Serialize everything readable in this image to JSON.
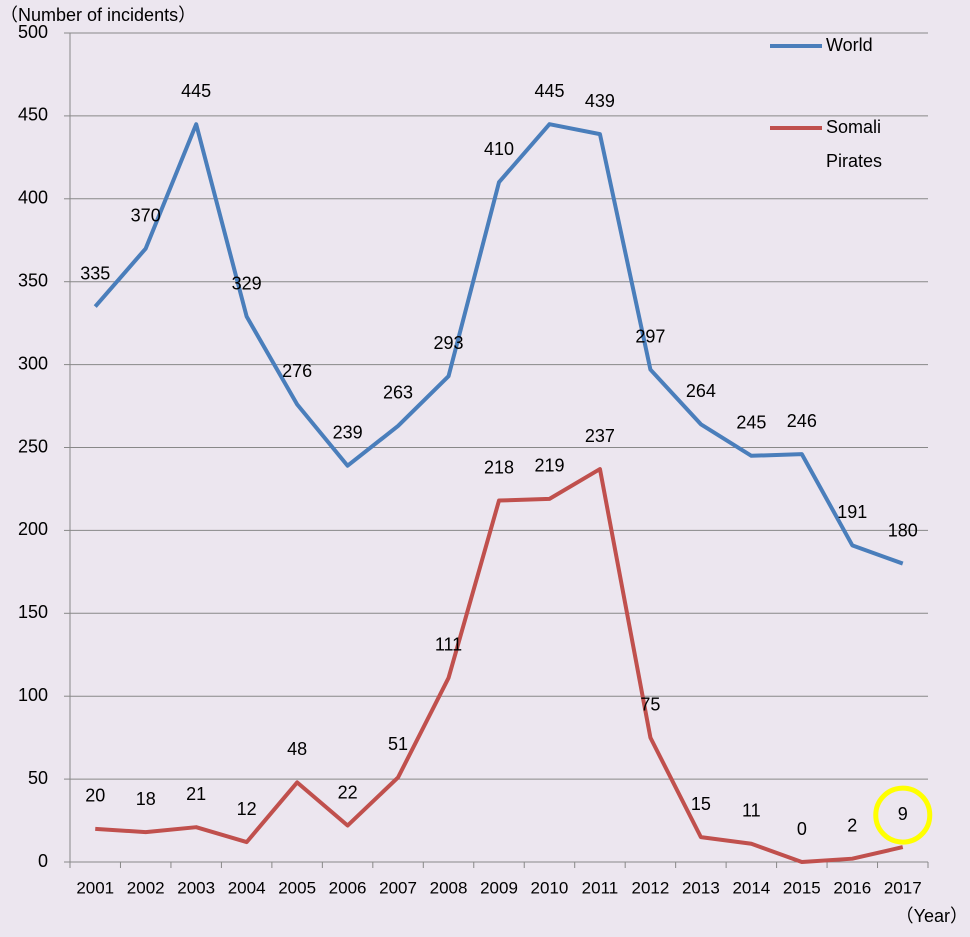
{
  "chart_data": {
    "type": "line",
    "y_axis_label": "（Number of incidents）",
    "x_axis_label": "（Year）",
    "categories": [
      "2001",
      "2002",
      "2003",
      "2004",
      "2005",
      "2006",
      "2007",
      "2008",
      "2009",
      "2010",
      "2011",
      "2012",
      "2013",
      "2014",
      "2015",
      "2016",
      "2017"
    ],
    "series": [
      {
        "name": "World",
        "color": "#4a7ebb",
        "values": [
          335,
          370,
          445,
          329,
          276,
          239,
          263,
          293,
          410,
          445,
          439,
          297,
          264,
          245,
          246,
          191,
          180
        ]
      },
      {
        "name": "Somali Pirates",
        "color": "#c0504d",
        "values": [
          20,
          18,
          21,
          12,
          48,
          22,
          51,
          111,
          218,
          219,
          237,
          75,
          15,
          11,
          0,
          2,
          9
        ]
      }
    ],
    "ylim": [
      0,
      500
    ],
    "yticks": [
      0,
      50,
      100,
      150,
      200,
      250,
      300,
      350,
      400,
      450,
      500
    ],
    "grid": true,
    "legend": "top-right",
    "highlight_color": "#ffff00"
  }
}
